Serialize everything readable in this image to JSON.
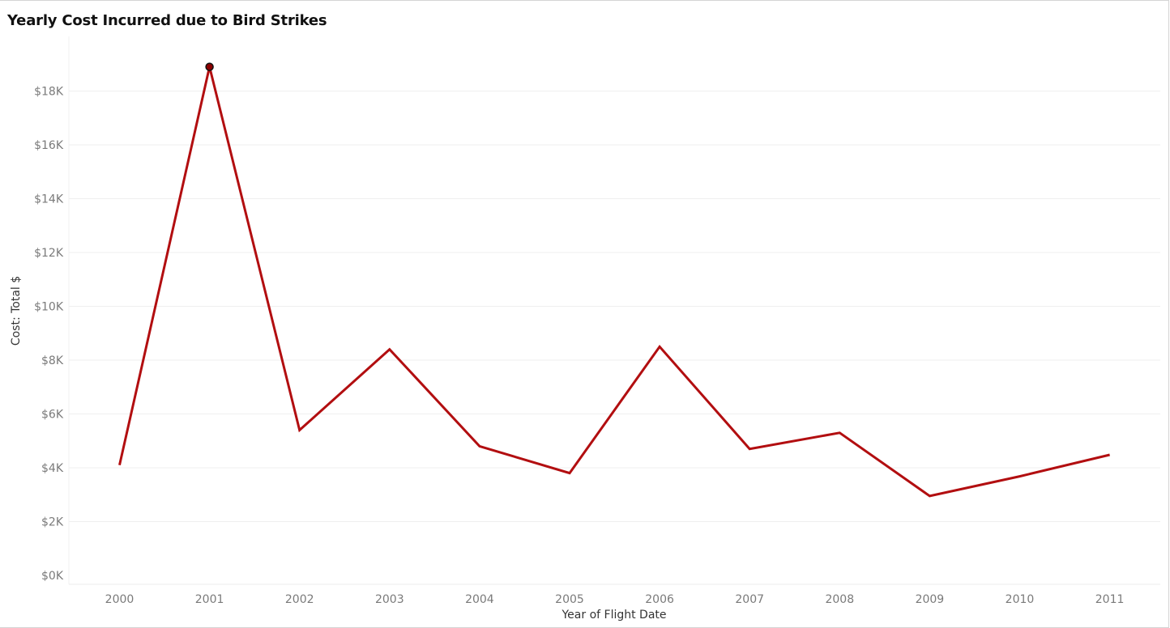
{
  "title": "Yearly Cost Incurred due to Bird Strikes",
  "colors": {
    "line": "#b20e10",
    "marker_fill": "#8b0000",
    "marker_stroke": "#111111",
    "grid": "#efefef"
  },
  "chart_data": {
    "type": "line",
    "title": "Yearly Cost Incurred due to Bird Strikes",
    "xlabel": "Year of Flight Date",
    "ylabel": "Cost: Total $",
    "categories": [
      "2000",
      "2001",
      "2002",
      "2003",
      "2004",
      "2005",
      "2006",
      "2007",
      "2008",
      "2009",
      "2010",
      "2011"
    ],
    "series": [
      {
        "values": [
          4100,
          18900,
          5400,
          8400,
          4800,
          3800,
          8500,
          4700,
          5300,
          2950,
          3680,
          4480
        ]
      }
    ],
    "ylim": [
      0,
      19500
    ],
    "yticks": [
      0,
      2000,
      4000,
      6000,
      8000,
      10000,
      12000,
      14000,
      16000,
      18000
    ],
    "ytick_labels": [
      "$0K",
      "$2K",
      "$4K",
      "$6K",
      "$8K",
      "$10K",
      "$12K",
      "$14K",
      "$16K",
      "$18K"
    ],
    "highlighted_point": "2001",
    "grid": true
  }
}
